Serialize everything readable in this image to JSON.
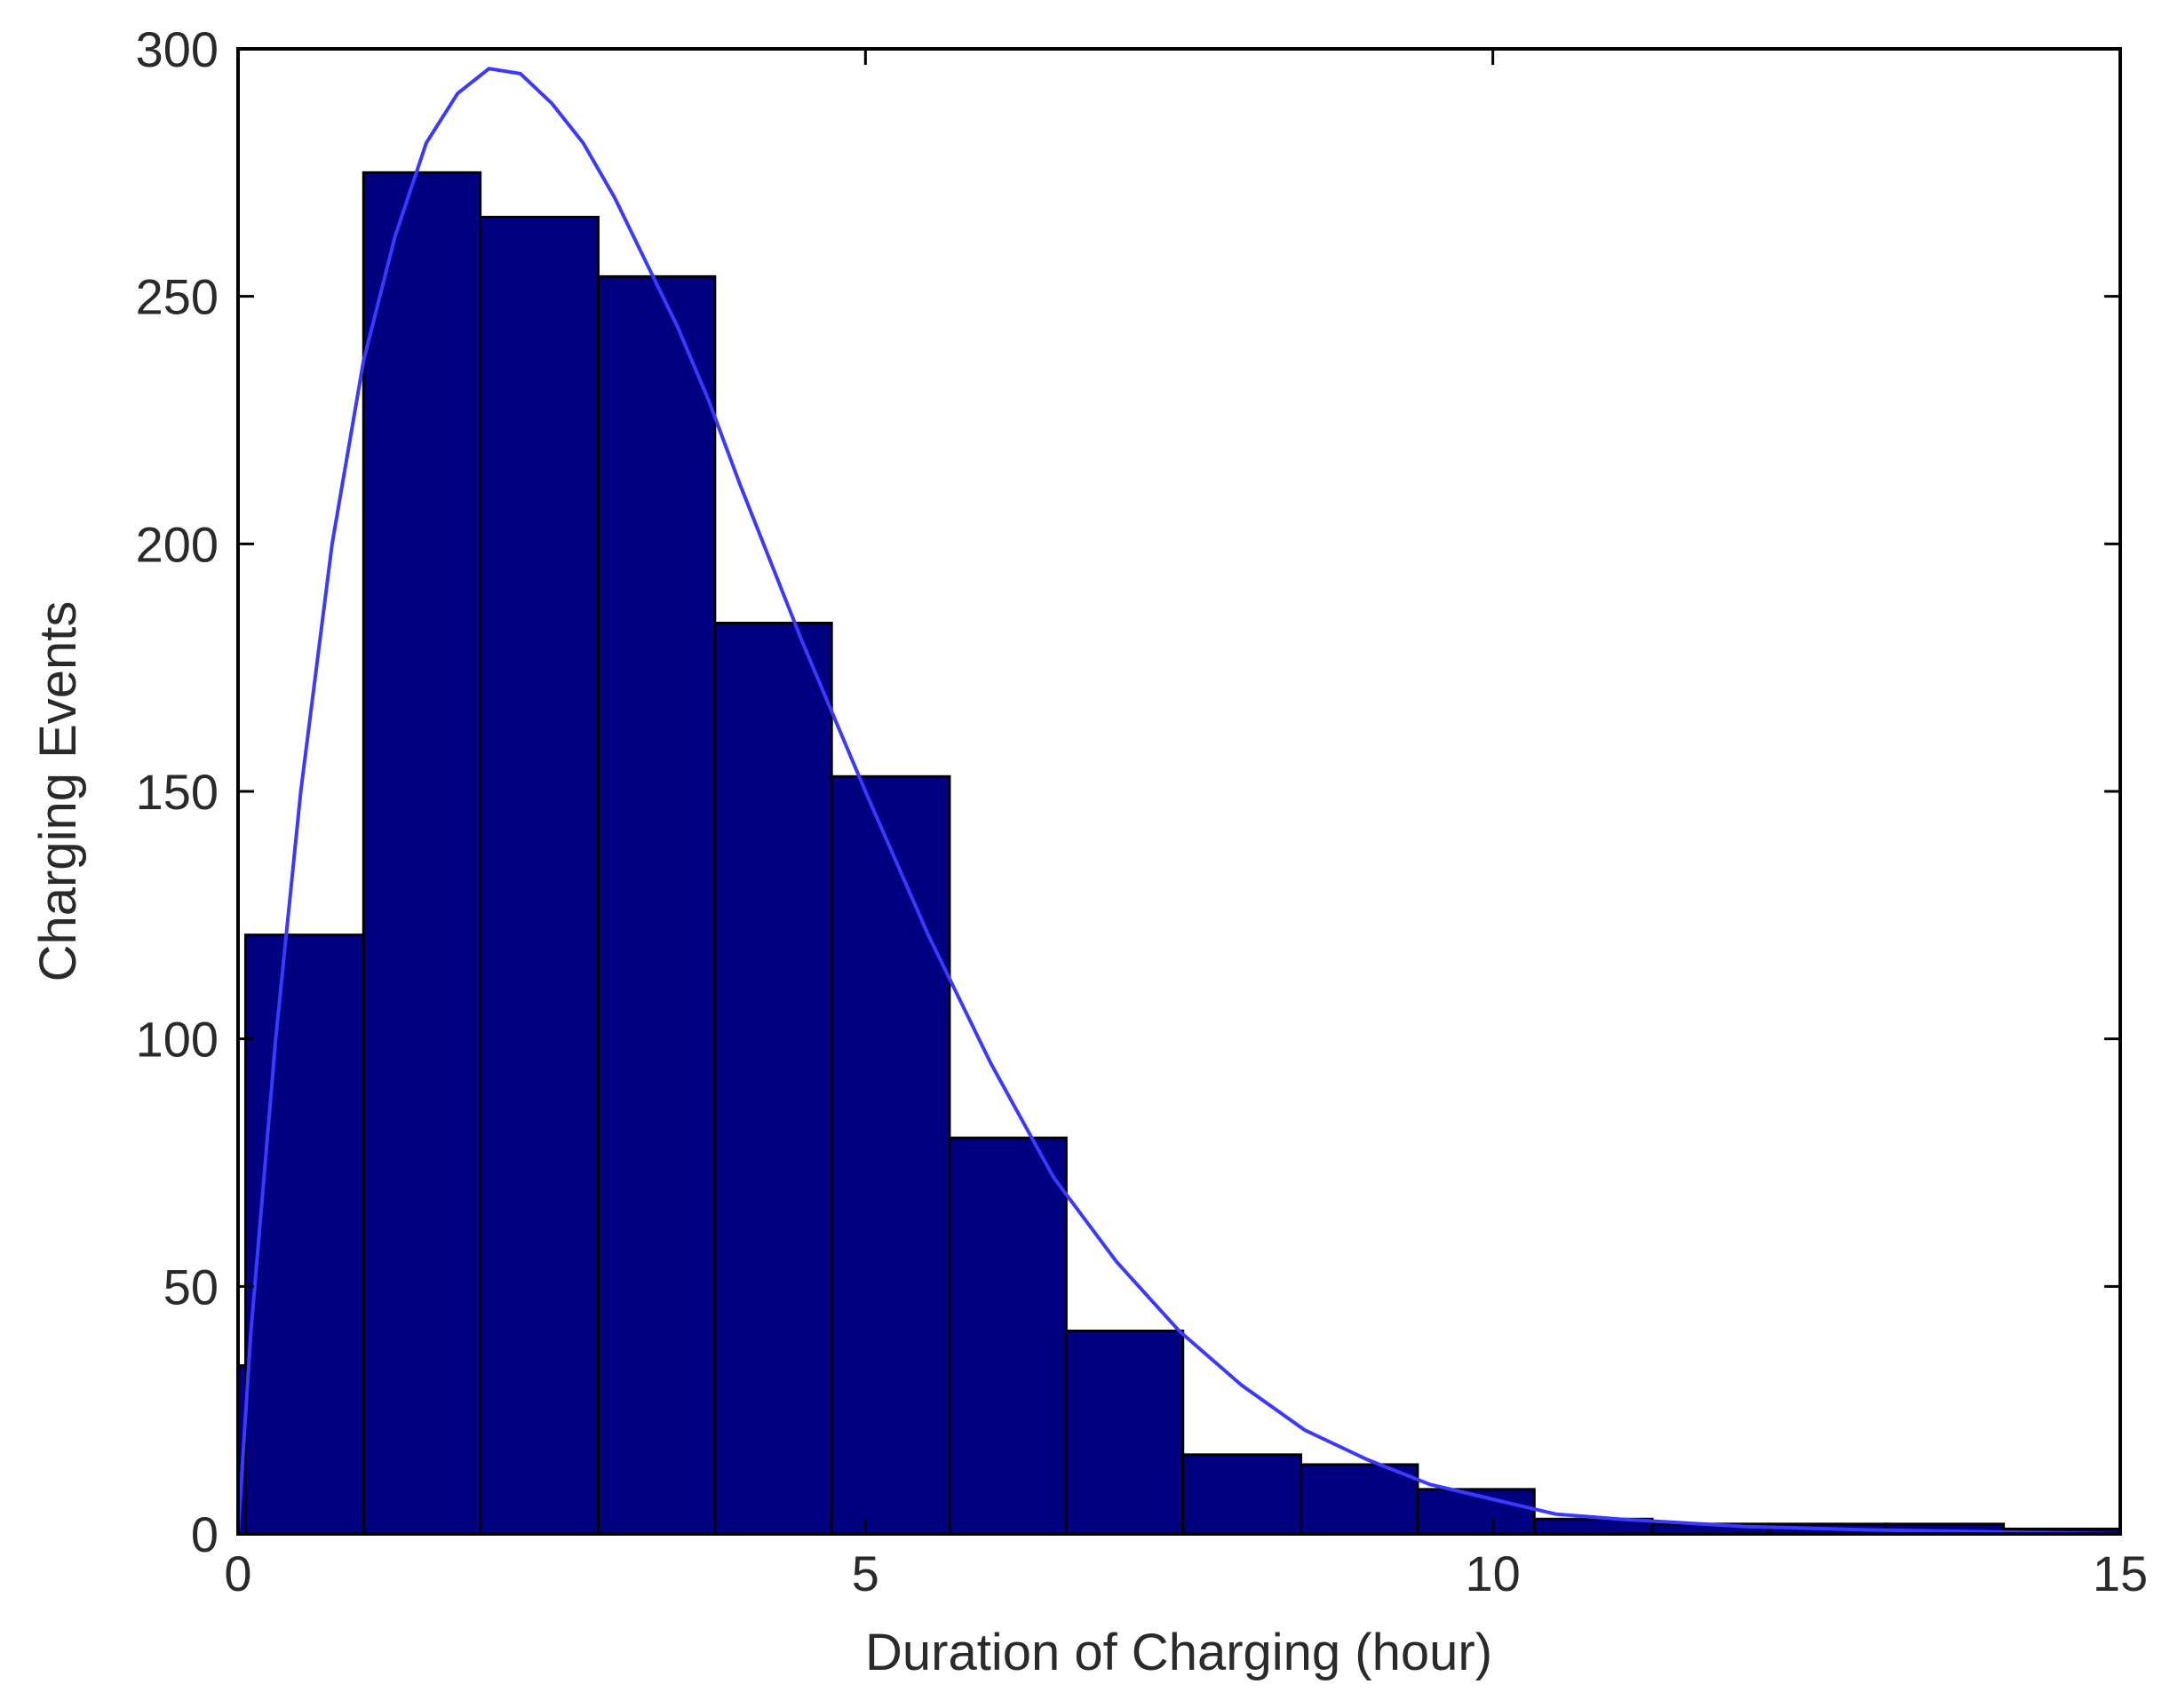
{
  "chart_data": {
    "type": "bar",
    "subtype": "histogram",
    "title": "",
    "xlabel": "Duration of Charging (hour)",
    "ylabel": "Charging Events",
    "xlim": [
      0,
      15
    ],
    "ylim": [
      0,
      300
    ],
    "xticks": [
      0,
      5,
      10,
      15
    ],
    "yticks": [
      0,
      50,
      100,
      150,
      200,
      250,
      300
    ],
    "grid": false,
    "bar_color": "#000080",
    "bar_edge_color": "#000000",
    "curve_color": "#3a3aff",
    "bins": [
      {
        "x0": 0.0,
        "x1": 0.06,
        "value": 34
      },
      {
        "x0": 0.06,
        "x1": 1.0,
        "value": 121
      },
      {
        "x0": 1.0,
        "x1": 1.93,
        "value": 275
      },
      {
        "x0": 1.93,
        "x1": 2.87,
        "value": 266
      },
      {
        "x0": 2.87,
        "x1": 3.8,
        "value": 254
      },
      {
        "x0": 3.8,
        "x1": 4.73,
        "value": 184
      },
      {
        "x0": 4.73,
        "x1": 5.67,
        "value": 153
      },
      {
        "x0": 5.67,
        "x1": 6.6,
        "value": 80
      },
      {
        "x0": 6.6,
        "x1": 7.53,
        "value": 41
      },
      {
        "x0": 7.53,
        "x1": 8.47,
        "value": 16
      },
      {
        "x0": 8.47,
        "x1": 9.4,
        "value": 14
      },
      {
        "x0": 9.4,
        "x1": 10.33,
        "value": 9
      },
      {
        "x0": 10.33,
        "x1": 11.27,
        "value": 3
      },
      {
        "x0": 11.27,
        "x1": 12.2,
        "value": 2
      },
      {
        "x0": 12.2,
        "x1": 13.13,
        "value": 2
      },
      {
        "x0": 13.13,
        "x1": 14.07,
        "value": 2
      },
      {
        "x0": 14.07,
        "x1": 15.0,
        "value": 1
      }
    ],
    "fit_curve": {
      "x": [
        0.0,
        0.1,
        0.3,
        0.5,
        0.75,
        1.0,
        1.25,
        1.5,
        1.75,
        2.0,
        2.25,
        2.5,
        2.75,
        3.0,
        3.25,
        3.5,
        3.75,
        4.0,
        4.5,
        5.0,
        5.5,
        6.0,
        6.5,
        7.0,
        7.5,
        8.0,
        8.5,
        9.0,
        9.5,
        10.0,
        10.5,
        11.0,
        12.0,
        13.0,
        14.0,
        15.0
      ],
      "y": [
        0,
        40,
        100,
        150,
        200,
        237,
        262,
        281,
        291,
        296,
        295,
        289,
        281,
        270,
        257,
        244,
        229,
        212,
        180,
        150,
        121,
        95,
        72,
        55,
        41,
        30,
        21,
        15,
        10,
        7,
        4,
        3,
        1.5,
        0.8,
        0.4,
        0
      ]
    }
  }
}
